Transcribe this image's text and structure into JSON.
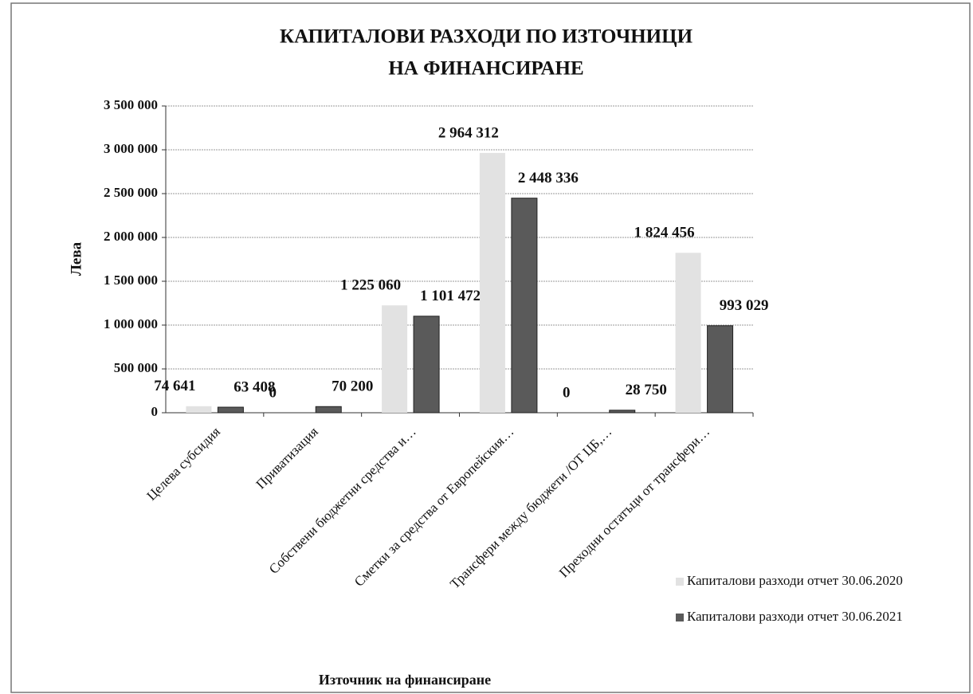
{
  "chart_data": {
    "type": "bar",
    "title": [
      "КАПИТАЛОВИ РАЗХОДИ ПО ИЗТОЧНИЦИ",
      "НА ФИНАНСИРАНЕ"
    ],
    "x_label": "Източник на финансиране",
    "y_label": "Лева",
    "categories": [
      "Целева субсидия",
      "Приватизация",
      "Собствени бюджетни средства и…",
      "Сметки за средства от Европейския…",
      "Трансфери между бюджети /ОТ ЦБ,…",
      "Преходни остатъци от трансфери…"
    ],
    "series": [
      {
        "name": "Капиталови разходи отчет 30.06.2020",
        "color": "#e2e2e2",
        "values": [
          74641,
          0,
          1225060,
          2964312,
          0,
          1824456
        ],
        "value_labels": [
          "74 641",
          "0",
          "1 225 060",
          "2 964 312",
          "0",
          "1 824 456"
        ]
      },
      {
        "name": "Капиталови разходи отчет 30.06.2021",
        "color": "#5a5a5a",
        "values": [
          63408,
          70200,
          1101472,
          2448336,
          28750,
          993029
        ],
        "value_labels": [
          "63 408",
          "70 200",
          "1 101 472",
          "2 448 336",
          "28 750",
          "993 029"
        ]
      }
    ],
    "ylim": [
      0,
      3500000
    ],
    "yticks": [
      0,
      {
        "value": 500000,
        "label": "500 000"
      },
      {
        "value": 1000000,
        "label": "1 000 000"
      },
      {
        "value": 1500000,
        "label": "1 500 000"
      },
      {
        "value": 2000000,
        "label": "2 000 000"
      },
      {
        "value": 2500000,
        "label": "2 500 000"
      },
      {
        "value": 3000000,
        "label": "3 000 000"
      },
      {
        "value": 3500000,
        "label": "3 500 000"
      }
    ],
    "grid": true,
    "legend": "bottom-right"
  }
}
